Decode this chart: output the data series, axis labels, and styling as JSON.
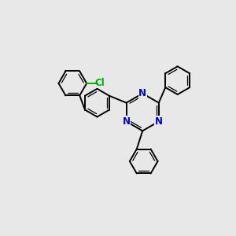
{
  "bg_color": "#e8e8e8",
  "bond_color": "#000000",
  "nitrogen_color": "#0000cc",
  "chlorine_color": "#00aa00",
  "bond_lw": 1.4,
  "inner_lw": 0.9,
  "figsize": [
    3.0,
    3.0
  ],
  "dpi": 100,
  "xlim": [
    0,
    10
  ],
  "ylim": [
    0,
    10
  ]
}
